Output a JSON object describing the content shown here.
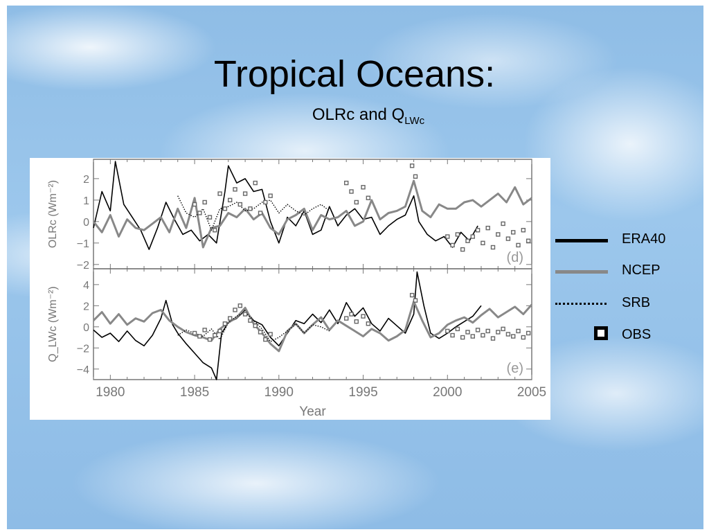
{
  "slide": {
    "title": "Tropical Oceans:",
    "subtitle_main": "OLRc and Q",
    "subtitle_sub": "LWc"
  },
  "legend": {
    "items": [
      {
        "label": "ERA40",
        "style": "solid-thick",
        "color": "#000000"
      },
      {
        "label": "NCEP",
        "style": "solid-thick",
        "color": "#888888"
      },
      {
        "label": "SRB",
        "style": "dotted",
        "color": "#000000"
      },
      {
        "label": "OBS",
        "style": "square-marker",
        "color": "#000000"
      }
    ]
  },
  "chart_data": [
    {
      "type": "line",
      "panel_label": "(d)",
      "ylabel": "OLRc (Wm⁻²)",
      "xlim": [
        1979,
        2005
      ],
      "ylim": [
        -2.2,
        2.9
      ],
      "yticks": [
        -2,
        -1,
        0,
        1,
        2
      ],
      "series": [
        {
          "name": "ERA40",
          "color": "#000000",
          "x": [
            1979,
            1979.5,
            1980,
            1980.3,
            1980.8,
            1981.3,
            1981.8,
            1982.3,
            1982.8,
            1983.3,
            1983.8,
            1984.3,
            1984.8,
            1985.3,
            1985.8,
            1986.3,
            1986.8,
            1987,
            1987.5,
            1988,
            1988.5,
            1989,
            1989.5,
            1990,
            1990.5,
            1991,
            1991.5,
            1992,
            1992.5,
            1993,
            1993.5,
            1994,
            1994.5,
            1995,
            1995.5,
            1996,
            1996.5,
            1997,
            1997.5,
            1998,
            1998.3,
            1998.8,
            1999.3,
            1999.8,
            2000.3,
            2000.8,
            2001.3,
            2001.8
          ],
          "y": [
            -0.3,
            1.4,
            0.5,
            2.8,
            0.8,
            0.2,
            -0.4,
            -1.3,
            -0.3,
            0.9,
            0.1,
            -0.6,
            -0.4,
            -0.9,
            -0.6,
            -1.0,
            1.4,
            2.6,
            1.8,
            2.0,
            1.4,
            1.5,
            0.0,
            -1.0,
            0.2,
            -0.2,
            0.5,
            -0.6,
            -0.4,
            0.7,
            -0.2,
            0.3,
            0.6,
            0.1,
            0.2,
            -0.6,
            -0.2,
            0.1,
            0.3,
            1.2,
            0.0,
            -0.6,
            -0.9,
            -0.7,
            -1.2,
            -0.5,
            -0.9,
            -0.2
          ]
        },
        {
          "name": "NCEP",
          "color": "#888888",
          "x": [
            1979,
            1979.5,
            1980,
            1980.5,
            1981,
            1981.5,
            1982,
            1982.5,
            1983,
            1983.5,
            1984,
            1984.5,
            1985,
            1985.5,
            1986,
            1986.5,
            1987,
            1987.5,
            1988,
            1988.5,
            1989,
            1989.5,
            1990,
            1990.5,
            1991,
            1991.5,
            1992,
            1992.5,
            1993,
            1993.5,
            1994,
            1994.5,
            1995,
            1995.5,
            1996,
            1996.5,
            1997,
            1997.5,
            1998,
            1998.5,
            1999,
            1999.5,
            2000,
            2000.5,
            2001,
            2001.5,
            2002,
            2002.5,
            2003,
            2003.5,
            2004,
            2004.5,
            2005
          ],
          "y": [
            0.0,
            -0.5,
            0.3,
            -0.7,
            0.1,
            -0.3,
            -0.4,
            -0.1,
            0.2,
            -0.5,
            0.6,
            -0.3,
            1.1,
            -1.2,
            -0.3,
            -0.2,
            0.4,
            0.2,
            0.6,
            0.1,
            0.4,
            -0.3,
            -0.6,
            0.1,
            0.3,
            0.6,
            -0.4,
            0.3,
            0.1,
            0.2,
            0.5,
            -0.2,
            0.0,
            1.0,
            0.1,
            0.4,
            0.5,
            0.7,
            1.9,
            0.5,
            0.2,
            0.8,
            0.6,
            0.6,
            0.9,
            1.0,
            0.7,
            1.0,
            1.3,
            0.9,
            1.6,
            0.8,
            1.1
          ]
        },
        {
          "name": "SRB",
          "color": "#000000",
          "dotted": true,
          "x": [
            1984.0,
            1984.5,
            1985.0,
            1985.5,
            1986.0,
            1986.5,
            1987.0,
            1987.5,
            1988.0,
            1988.5,
            1989.0,
            1989.5,
            1990.0,
            1990.5,
            1991.0,
            1991.5,
            1992.0,
            1992.5,
            1993.0
          ],
          "y": [
            1.2,
            0.4,
            0.2,
            0.6,
            -0.4,
            0.6,
            0.7,
            0.9,
            0.5,
            0.6,
            0.9,
            1.0,
            0.4,
            0.8,
            0.5,
            0.3,
            0.6,
            0.8,
            0.5
          ]
        },
        {
          "name": "OBS",
          "color": "#666666",
          "markers": true,
          "x": [
            1985.0,
            1985.3,
            1985.6,
            1985.9,
            1986.2,
            1986.5,
            1986.8,
            1987.1,
            1987.4,
            1987.7,
            1988.0,
            1988.3,
            1988.6,
            1988.9,
            1989.2,
            1989.5,
            1994.0,
            1994.3,
            1994.6,
            1995.0,
            1995.3,
            1997.9,
            1998.1,
            2000.0,
            2000.3,
            2000.6,
            2000.9,
            2001.2,
            2001.5,
            2001.8,
            2002.1,
            2002.4,
            2002.7,
            2003.0,
            2003.3,
            2003.6,
            2003.9,
            2004.2,
            2004.5,
            2004.8
          ],
          "y": [
            0.8,
            0.4,
            0.9,
            0.2,
            -0.4,
            1.3,
            0.6,
            1.0,
            1.5,
            0.8,
            1.3,
            0.6,
            1.8,
            0.4,
            0.9,
            1.2,
            1.8,
            1.4,
            0.9,
            1.6,
            1.1,
            2.6,
            2.1,
            -0.7,
            -1.1,
            -0.6,
            -1.3,
            -0.9,
            -0.7,
            -0.4,
            -1.0,
            -0.3,
            -1.2,
            -0.6,
            -0.1,
            -0.8,
            -0.5,
            -1.1,
            -0.4,
            -0.9
          ]
        }
      ]
    },
    {
      "type": "line",
      "panel_label": "(e)",
      "ylabel": "Q_LWc (Wm⁻²)",
      "xlabel": "Year",
      "xlim": [
        1979,
        2005
      ],
      "ylim": [
        -5,
        5.5
      ],
      "yticks": [
        -4,
        -2,
        0,
        2,
        4
      ],
      "xticks": [
        1980,
        1985,
        1990,
        1995,
        2000,
        2005
      ],
      "series": [
        {
          "name": "ERA40",
          "color": "#000000",
          "x": [
            1979,
            1979.5,
            1980,
            1980.5,
            1981,
            1981.5,
            1982,
            1982.5,
            1983,
            1983.3,
            1983.7,
            1984,
            1984.5,
            1985,
            1985.5,
            1986,
            1986.3,
            1986.6,
            1987,
            1987.5,
            1988,
            1988.5,
            1989,
            1989.5,
            1990,
            1990.5,
            1991,
            1991.5,
            1992,
            1992.5,
            1993,
            1993.5,
            1994,
            1994.5,
            1995,
            1995.5,
            1996,
            1996.5,
            1997,
            1997.5,
            1998,
            1998.2,
            1998.6,
            1999,
            1999.5,
            2000,
            2000.5,
            2001,
            2001.5,
            2002
          ],
          "y": [
            -0.3,
            -1.0,
            -0.6,
            -1.4,
            -0.4,
            -1.3,
            -1.8,
            -0.8,
            0.8,
            2.5,
            0.2,
            -0.6,
            -1.6,
            -2.5,
            -3.4,
            -3.9,
            -5.0,
            -0.6,
            0.4,
            0.8,
            1.6,
            0.6,
            0.2,
            -1.0,
            -1.8,
            -0.6,
            0.6,
            0.3,
            1.2,
            0.4,
            1.6,
            0.3,
            2.3,
            1.0,
            1.8,
            0.3,
            -0.4,
            0.8,
            0.1,
            -0.6,
            1.2,
            5.2,
            2.0,
            -0.6,
            -1.1,
            -0.6,
            0.0,
            0.5,
            1.0,
            2.0
          ]
        },
        {
          "name": "NCEP",
          "color": "#888888",
          "x": [
            1979,
            1979.5,
            1980,
            1980.5,
            1981,
            1981.5,
            1982,
            1982.5,
            1983,
            1983.5,
            1984,
            1984.5,
            1985,
            1985.5,
            1986,
            1986.5,
            1987,
            1987.5,
            1988,
            1988.5,
            1989,
            1989.5,
            1990,
            1990.5,
            1991,
            1991.5,
            1992,
            1992.5,
            1993,
            1993.5,
            1994,
            1994.5,
            1995,
            1995.5,
            1996,
            1996.5,
            1997,
            1997.5,
            1998,
            1998.5,
            1999,
            1999.5,
            2000,
            2000.5,
            2001,
            2001.5,
            2002,
            2002.5,
            2003,
            2003.5,
            2004,
            2004.5,
            2005
          ],
          "y": [
            0.6,
            1.4,
            0.3,
            1.2,
            0.2,
            0.8,
            0.5,
            1.3,
            1.6,
            0.6,
            0.0,
            -0.5,
            -0.8,
            -1.0,
            -1.3,
            -0.2,
            0.4,
            0.9,
            1.8,
            0.3,
            -0.6,
            -1.6,
            -2.3,
            -0.4,
            0.3,
            -0.6,
            0.2,
            0.9,
            -0.3,
            0.6,
            0.1,
            -0.4,
            -0.9,
            -0.2,
            -0.6,
            -1.3,
            -0.9,
            -0.3,
            2.4,
            0.6,
            -1.0,
            -0.6,
            0.2,
            0.6,
            0.9,
            0.4,
            1.1,
            1.7,
            0.9,
            1.4,
            1.9,
            1.2,
            2.1
          ]
        },
        {
          "name": "SRB",
          "color": "#000000",
          "dotted": true,
          "x": [
            1984.0,
            1984.5,
            1985.0,
            1985.5,
            1986.0,
            1986.5,
            1987.0,
            1987.5,
            1988.0,
            1988.5,
            1989.0,
            1989.5,
            1990.0,
            1990.5,
            1991.0,
            1991.5,
            1992.0,
            1992.5,
            1993.0
          ],
          "y": [
            -0.8,
            -0.3,
            -0.6,
            -0.9,
            -0.2,
            -1.2,
            0.4,
            1.0,
            1.4,
            0.6,
            -0.2,
            -1.4,
            -1.0,
            -0.4,
            0.3,
            -0.6,
            0.2,
            0.0,
            -0.4
          ]
        },
        {
          "name": "OBS",
          "color": "#666666",
          "markers": true,
          "x": [
            1985.0,
            1985.3,
            1985.6,
            1985.9,
            1986.2,
            1986.5,
            1986.8,
            1987.1,
            1987.4,
            1987.7,
            1988.0,
            1988.3,
            1988.6,
            1988.9,
            1989.2,
            1989.5,
            1994.0,
            1994.3,
            1994.6,
            1995.0,
            1995.3,
            1997.9,
            1998.1,
            2000.0,
            2000.3,
            2000.6,
            2000.9,
            2001.2,
            2001.5,
            2001.8,
            2002.1,
            2002.4,
            2002.7,
            2003.0,
            2003.3,
            2003.6,
            2003.9,
            2004.2,
            2004.5,
            2004.8
          ],
          "y": [
            -0.6,
            -0.9,
            -0.3,
            -1.2,
            -0.8,
            -0.4,
            0.3,
            0.8,
            1.6,
            2.0,
            1.2,
            0.6,
            0.1,
            -0.5,
            -1.2,
            -0.7,
            0.8,
            1.2,
            0.5,
            1.0,
            0.3,
            3.0,
            2.5,
            -0.4,
            -0.8,
            -0.2,
            -1.0,
            -0.5,
            -0.9,
            -0.3,
            -0.8,
            -0.4,
            -1.1,
            -0.5,
            -0.2,
            -0.7,
            -0.9,
            -0.4,
            -1.0,
            -0.6
          ]
        }
      ]
    }
  ]
}
